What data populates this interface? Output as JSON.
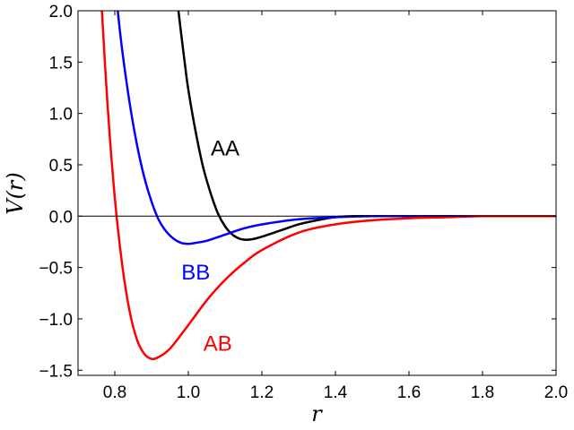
{
  "chart_data": {
    "type": "line",
    "xlabel": "r",
    "ylabel": "V(r)",
    "xlim": [
      0.7,
      2.0
    ],
    "ylim": [
      -1.55,
      2.0
    ],
    "x_ticks": [
      0.8,
      1.0,
      1.2,
      1.4,
      1.6,
      1.8,
      2.0
    ],
    "y_ticks": [
      -1.5,
      -1.0,
      -0.5,
      0.0,
      0.5,
      1.0,
      1.5,
      2.0
    ],
    "x_tick_labels": [
      "0.8",
      "1.0",
      "1.2",
      "1.4",
      "1.6",
      "1.8",
      "2.0"
    ],
    "y_tick_labels": [
      "−1.5",
      "−1.0",
      "−0.5",
      "0.0",
      "0.5",
      "1.0",
      "1.5",
      "2.0"
    ],
    "grid": false,
    "reference_line_y": 0.0,
    "series": [
      {
        "name": "AA",
        "color": "#000000",
        "x": [
          0.973,
          0.98,
          0.99,
          1.0,
          1.02,
          1.04,
          1.06,
          1.08,
          1.1,
          1.12,
          1.14,
          1.16,
          1.18,
          1.2,
          1.25,
          1.3,
          1.35,
          1.4,
          1.45,
          1.5,
          1.6,
          1.8,
          2.0
        ],
        "y": [
          2.0,
          1.79,
          1.5,
          1.23,
          0.82,
          0.48,
          0.23,
          0.03,
          -0.1,
          -0.18,
          -0.22,
          -0.23,
          -0.22,
          -0.2,
          -0.14,
          -0.08,
          -0.04,
          -0.01,
          0.0,
          0.0,
          0.0,
          0.0,
          0.0
        ],
        "label": "AA"
      },
      {
        "name": "BB",
        "color": "#0000ff",
        "x": [
          0.808,
          0.82,
          0.84,
          0.86,
          0.88,
          0.9,
          0.92,
          0.94,
          0.96,
          0.98,
          1.0,
          1.02,
          1.05,
          1.1,
          1.15,
          1.2,
          1.3,
          1.4,
          1.5,
          1.6,
          1.8,
          2.0
        ],
        "y": [
          2.0,
          1.62,
          1.11,
          0.7,
          0.38,
          0.14,
          -0.04,
          -0.15,
          -0.22,
          -0.26,
          -0.27,
          -0.26,
          -0.24,
          -0.18,
          -0.12,
          -0.08,
          -0.03,
          -0.01,
          0.0,
          0.0,
          0.0,
          0.0
        ],
        "label": "BB"
      },
      {
        "name": "AB",
        "color": "#ff0000",
        "x": [
          0.765,
          0.78,
          0.8,
          0.82,
          0.84,
          0.86,
          0.88,
          0.9,
          0.92,
          0.95,
          1.0,
          1.05,
          1.1,
          1.15,
          1.2,
          1.3,
          1.4,
          1.5,
          1.6,
          1.7,
          1.8,
          1.9,
          2.0
        ],
        "y": [
          2.0,
          1.1,
          0.18,
          -0.47,
          -0.92,
          -1.2,
          -1.34,
          -1.39,
          -1.37,
          -1.29,
          -1.06,
          -0.82,
          -0.62,
          -0.46,
          -0.33,
          -0.16,
          -0.08,
          -0.04,
          -0.02,
          -0.01,
          0.0,
          0.0,
          0.0
        ],
        "label": "AB"
      }
    ],
    "annotations": [
      {
        "text": "AA",
        "x": 1.1,
        "y": 0.67,
        "color": "#000000"
      },
      {
        "text": "BB",
        "x": 1.02,
        "y": -0.54,
        "color": "#0000ff"
      },
      {
        "text": "AB",
        "x": 1.08,
        "y": -1.23,
        "color": "#ff0000"
      }
    ]
  }
}
